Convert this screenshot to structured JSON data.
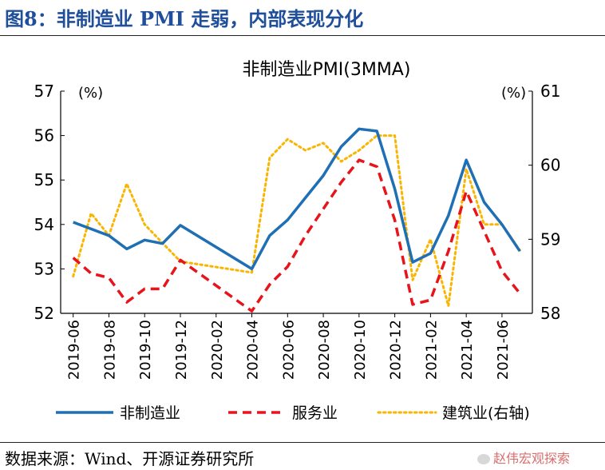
{
  "figure": {
    "title": "图8：非制造业 PMI 走弱，内部表现分化",
    "source": "数据来源：Wind、开源证券研究所",
    "watermark": "赵伟宏观探索",
    "watermark_icon": "wechat-icon"
  },
  "chart_data": {
    "type": "line",
    "title": "非制造业PMI(3MMA)",
    "left_unit": "(%)",
    "right_unit": "(%)",
    "ylim_left": [
      52,
      57
    ],
    "ylim_right": [
      58,
      61
    ],
    "yticks_left": [
      "52",
      "53",
      "54",
      "55",
      "56",
      "57"
    ],
    "yticks_right": [
      "58",
      "59",
      "60",
      "61"
    ],
    "x": [
      "2019-06",
      "2019-07",
      "2019-08",
      "2019-09",
      "2019-10",
      "2019-11",
      "2019-12",
      "2020-01",
      "2020-02",
      "2020-03",
      "2020-04",
      "2020-05",
      "2020-06",
      "2020-07",
      "2020-08",
      "2020-09",
      "2020-10",
      "2020-11",
      "2020-12",
      "2021-01",
      "2021-02",
      "2021-03",
      "2021-04",
      "2021-05",
      "2021-06",
      "2021-07"
    ],
    "xticks": [
      "2019-06",
      "2019-08",
      "2019-10",
      "2019-12",
      "2020-02",
      "2020-04",
      "2020-06",
      "2020-08",
      "2020-10",
      "2020-12",
      "2021-02",
      "2021-04",
      "2021-06"
    ],
    "grid": false,
    "legend_position": "bottom",
    "series": [
      {
        "name": "非制造业",
        "axis": "left",
        "style": "solid",
        "color": "#1f6fb4",
        "values": [
          54.05,
          53.9,
          53.75,
          53.45,
          53.65,
          53.57,
          53.98,
          null,
          null,
          null,
          53.0,
          53.75,
          54.1,
          54.6,
          55.1,
          55.75,
          56.15,
          56.1,
          54.8,
          53.15,
          53.35,
          54.2,
          55.45,
          54.5,
          54.0,
          53.4
        ]
      },
      {
        "name": "服务业",
        "axis": "left",
        "style": "dashed",
        "color": "#e8141b",
        "values": [
          53.25,
          52.9,
          52.8,
          52.25,
          52.55,
          52.55,
          53.2,
          null,
          null,
          null,
          52.05,
          52.65,
          53.05,
          53.75,
          54.35,
          54.95,
          55.45,
          55.3,
          54.1,
          52.2,
          52.3,
          53.4,
          54.75,
          53.85,
          52.95,
          52.45
        ]
      },
      {
        "name": "建筑业(右轴)",
        "axis": "right",
        "style": "dotted",
        "color": "#f9b500",
        "values": [
          58.5,
          59.35,
          59.05,
          59.75,
          59.2,
          58.95,
          58.7,
          null,
          null,
          null,
          58.55,
          60.1,
          60.35,
          60.2,
          60.3,
          60.05,
          60.2,
          60.4,
          60.4,
          58.45,
          59.0,
          58.1,
          59.95,
          59.2,
          59.2,
          58.85
        ]
      }
    ]
  }
}
